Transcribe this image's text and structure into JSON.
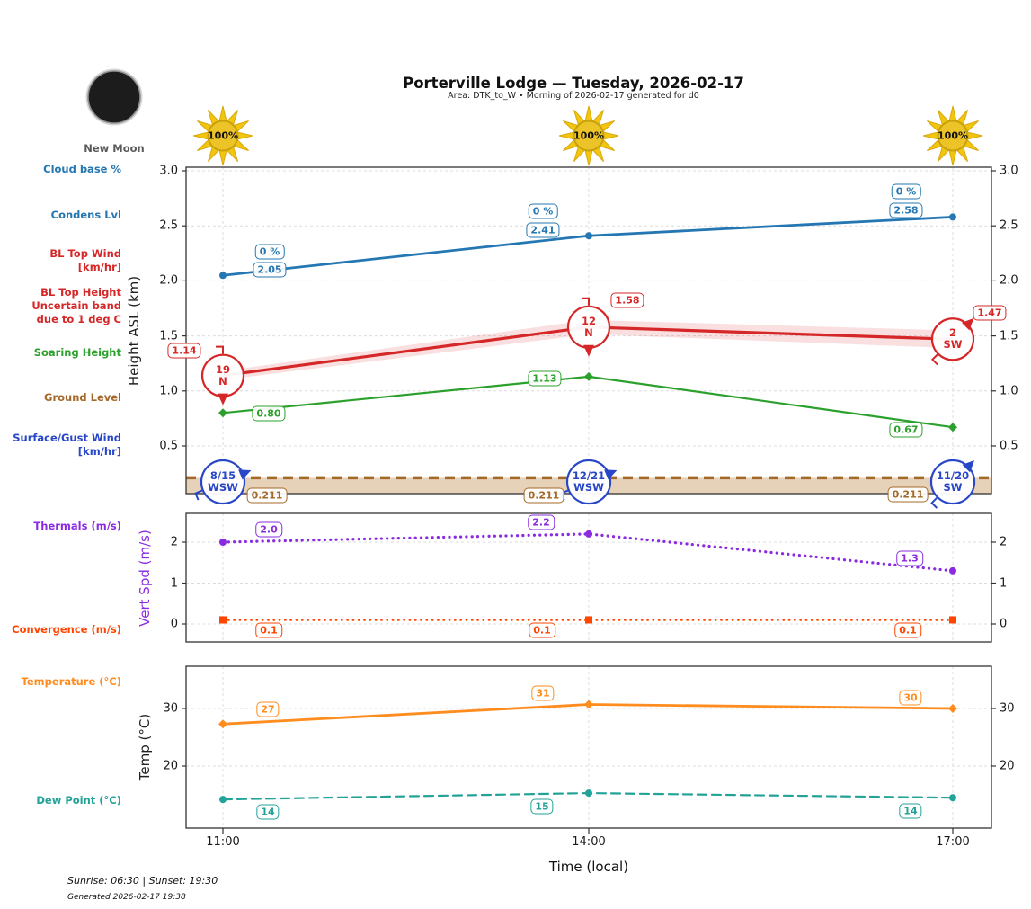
{
  "header": {
    "title": "Porterville Lodge — Tuesday, 2026-02-17",
    "subtitle": "Area: DTK_to_W • Morning of 2026-02-17 generated for d0",
    "moon": {
      "phase": "New Moon"
    },
    "suns": [
      {
        "label": "100%"
      },
      {
        "label": "100%"
      },
      {
        "label": "100%"
      }
    ]
  },
  "legend": {
    "cloud_base": "Cloud base %",
    "condens_lvl": "Condens Lvl",
    "bl_top_wind_1": "BL Top Wind",
    "bl_top_wind_2": "[km/hr]",
    "bl_top_height_1": "BL Top Height",
    "bl_top_height_2": "Uncertain band",
    "bl_top_height_3": "due to 1 deg C",
    "soaring_height": "Soaring Height",
    "ground_level": "Ground Level",
    "surface_wind_1": "Surface/Gust Wind",
    "surface_wind_2": "[km/hr]",
    "thermals": "Thermals (m/s)",
    "convergence": "Convergence (m/s)",
    "temperature": "Temperature (°C)",
    "dew_point": "Dew Point (°C)"
  },
  "axes": {
    "xlabel": "Time (local)",
    "x_ticks": [
      "11:00",
      "14:00",
      "17:00"
    ]
  },
  "chart_data": [
    {
      "type": "line",
      "ylabel": "Height ASL (km)",
      "ylim": [
        0.05,
        3.02
      ],
      "yticks": [
        "0.5",
        "1.0",
        "1.5",
        "2.0",
        "2.5",
        "3.0"
      ],
      "x": [
        "11:00",
        "14:00",
        "17:00"
      ],
      "series": [
        {
          "name": "Condens Lvl",
          "color": "#2477b2",
          "style": "solid",
          "marker": "circle",
          "lw": 2.8,
          "values": [
            2.05,
            2.41,
            2.58
          ],
          "point_labels": [
            "2.05",
            "2.41",
            "2.58"
          ],
          "cloud_labels": [
            "0 %",
            "0 %",
            "0 %"
          ]
        },
        {
          "name": "BL Top Height",
          "color": "#d62728",
          "style": "solid",
          "lw": 3.2,
          "values": [
            1.14,
            1.58,
            1.47
          ],
          "point_labels": [
            "1.14",
            "1.58",
            "1.47"
          ],
          "band": [
            0.04,
            0.065,
            0.08
          ],
          "wind": [
            {
              "speed": "19",
              "dir": "N"
            },
            {
              "speed": "12",
              "dir": "N"
            },
            {
              "speed": "2",
              "dir": "SW"
            }
          ]
        },
        {
          "name": "Soaring Height",
          "color": "#2ca02c",
          "style": "solid",
          "marker": "diamond",
          "lw": 2.2,
          "values": [
            0.8,
            1.13,
            0.67
          ],
          "point_labels": [
            "0.80",
            "1.13",
            "0.67"
          ]
        },
        {
          "name": "Ground Level",
          "color": "#a5682a",
          "style": "dashed",
          "lw": 3.4,
          "fill_below": true,
          "values": [
            0.211,
            0.211,
            0.211
          ],
          "point_labels": [
            "0.211",
            "0.211",
            "0.211"
          ]
        },
        {
          "name": "Surface/Gust Wind",
          "color": "#2746c8",
          "wind_row": true,
          "wind": [
            {
              "speed": "8/15",
              "dir": "WSW"
            },
            {
              "speed": "12/21",
              "dir": "WSW"
            },
            {
              "speed": "11/20",
              "dir": "SW"
            }
          ]
        }
      ]
    },
    {
      "type": "line",
      "ylabel": "Vert Spd (m/s)",
      "yticks": [
        "0",
        "1",
        "2"
      ],
      "x": [
        "11:00",
        "14:00",
        "17:00"
      ],
      "series": [
        {
          "name": "Thermals",
          "color": "#8a2be2",
          "style": "dotted",
          "marker": "circle",
          "lw": 3.2,
          "values": [
            2.0,
            2.2,
            1.3
          ],
          "point_labels": [
            "2.0",
            "2.2",
            "1.3"
          ]
        },
        {
          "name": "Convergence",
          "color": "#ff4500",
          "style": "dotted",
          "marker": "square",
          "lw": 2.6,
          "values": [
            0.1,
            0.1,
            0.1
          ],
          "point_labels": [
            "0.1",
            "0.1",
            "0.1"
          ]
        }
      ]
    },
    {
      "type": "line",
      "ylabel": "Temp (°C)",
      "yticks": [
        "20",
        "30"
      ],
      "x": [
        "11:00",
        "14:00",
        "17:00"
      ],
      "series": [
        {
          "name": "Temperature",
          "color": "#ff8c1e",
          "style": "solid",
          "marker": "diamond",
          "lw": 2.8,
          "values": [
            27.3,
            30.7,
            30.0
          ],
          "point_labels": [
            "27",
            "31",
            "30"
          ]
        },
        {
          "name": "Dew Point",
          "color": "#23a298",
          "style": "dashed",
          "marker": "circle",
          "lw": 2.2,
          "values": [
            14.2,
            15.3,
            14.5
          ],
          "point_labels": [
            "14",
            "15",
            "14"
          ]
        }
      ]
    }
  ],
  "footer": {
    "sun_times": "Sunrise: 06:30 | Sunset: 19:30",
    "generated": "Generated 2026-02-17 19:38"
  }
}
